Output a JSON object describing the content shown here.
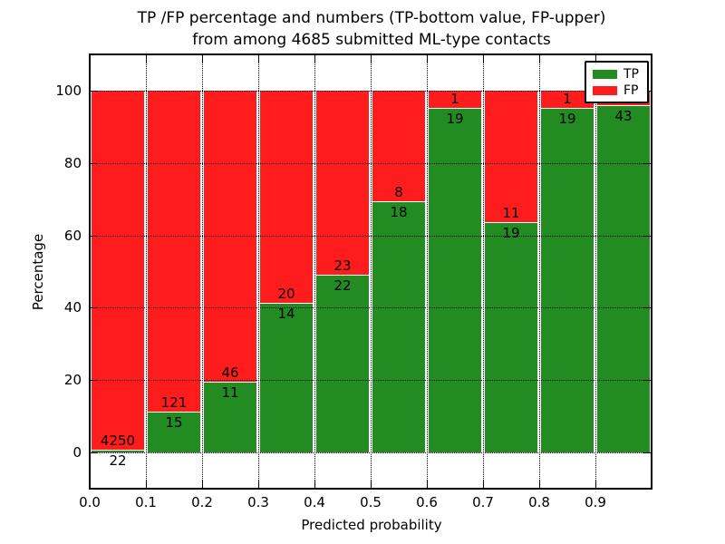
{
  "title": {
    "line1": "TP /FP percentage and numbers (TP-bottom value, FP-upper)",
    "line2": "from among 4685 submitted ML-type contacts"
  },
  "chart_data": {
    "type": "bar",
    "stacked": true,
    "title": "TP /FP percentage and numbers (TP-bottom value, FP-upper) from among 4685 submitted ML-type contacts",
    "xlabel": "Predicted probability",
    "ylabel": "Percentage",
    "xlim": [
      0.0,
      1.0
    ],
    "ylim": [
      -10,
      110
    ],
    "grid": true,
    "gridline_style": "dotted",
    "legend_position": "upper right",
    "x_bins": [
      "0.0-0.1",
      "0.1-0.2",
      "0.2-0.3",
      "0.3-0.4",
      "0.4-0.5",
      "0.5-0.6",
      "0.6-0.7",
      "0.7-0.8",
      "0.8-0.9",
      "0.9-1.0"
    ],
    "x_tick_labels": [
      "0.0",
      "0.1",
      "0.2",
      "0.3",
      "0.4",
      "0.5",
      "0.6",
      "0.7",
      "0.8",
      "0.9"
    ],
    "y_ticks": [
      0,
      20,
      40,
      60,
      80,
      100
    ],
    "y_tick_labels": [
      "0",
      "20",
      "40",
      "60",
      "80",
      "100"
    ],
    "series": [
      {
        "name": "TP",
        "color": "#228b22",
        "counts": [
          22,
          15,
          11,
          14,
          22,
          18,
          19,
          19,
          19,
          43
        ],
        "count_labels": [
          "22",
          "15",
          "11",
          "14",
          "22",
          "18",
          "19",
          "19",
          "19",
          "43"
        ],
        "percent": [
          0.5,
          11.0,
          19.3,
          41.2,
          48.9,
          69.2,
          95.0,
          63.3,
          95.0,
          95.6
        ]
      },
      {
        "name": "FP",
        "color": "#ff1c1c",
        "counts": [
          4250,
          121,
          46,
          20,
          23,
          8,
          1,
          11,
          1,
          null
        ],
        "count_labels": [
          "4250",
          "121",
          "46",
          "20",
          "23",
          "8",
          "1",
          "11",
          "1",
          ""
        ],
        "percent": [
          99.5,
          89.0,
          80.7,
          58.8,
          51.1,
          30.8,
          5.0,
          36.7,
          5.0,
          4.4
        ]
      }
    ]
  }
}
